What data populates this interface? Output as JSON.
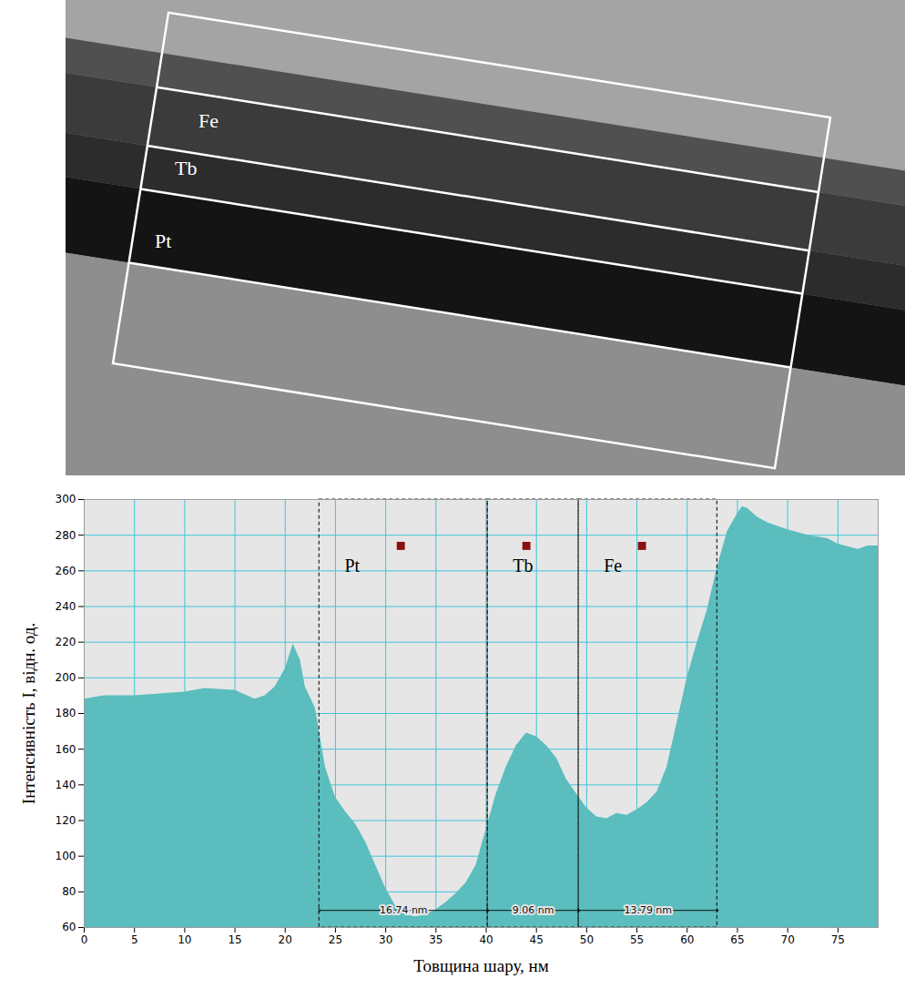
{
  "micrograph": {
    "labels": [
      "Fe",
      "Tb",
      "Pt"
    ]
  },
  "chart_data": {
    "type": "area",
    "x_label": "Товщина шару, нм",
    "y_label": "Інтенсивність I, відн. од.",
    "color": "#5bbdbd",
    "grid": true,
    "xlim": [
      0,
      79
    ],
    "xticks": [
      0,
      5,
      10,
      15,
      20,
      25,
      30,
      35,
      40,
      45,
      50,
      55,
      60,
      65,
      70,
      75
    ],
    "ylim": [
      60,
      300
    ],
    "yticks": [
      60,
      80,
      100,
      120,
      140,
      160,
      180,
      200,
      220,
      240,
      260,
      280,
      300
    ],
    "x": [
      0,
      2,
      5,
      10,
      12,
      15,
      17,
      18,
      19,
      20,
      20.8,
      21.5,
      22,
      23,
      24,
      25,
      26,
      27,
      28,
      29,
      30,
      31,
      32,
      33,
      34,
      35,
      36,
      37,
      38,
      39,
      40,
      41,
      42,
      43,
      44,
      45,
      46,
      47,
      48,
      49,
      50,
      51,
      52,
      53,
      54,
      55,
      56,
      57,
      58,
      59,
      60,
      61,
      62,
      63,
      64,
      65,
      65.5,
      66,
      67,
      68,
      70,
      72,
      74,
      75,
      77,
      78,
      79
    ],
    "values": [
      188,
      190,
      190,
      192,
      194,
      193,
      188,
      190,
      195,
      205,
      219,
      210,
      195,
      183,
      150,
      133,
      125,
      118,
      108,
      95,
      82,
      72,
      67,
      66,
      67,
      70,
      74,
      79,
      85,
      95,
      115,
      135,
      150,
      162,
      169,
      167,
      162,
      155,
      143,
      135,
      127,
      122,
      121,
      124,
      123,
      126,
      130,
      136,
      150,
      175,
      200,
      220,
      238,
      262,
      282,
      292,
      296,
      295,
      290,
      287,
      283,
      280,
      278,
      275,
      272,
      274,
      274
    ],
    "regions": [
      {
        "name": "Pt",
        "x0": 23.4,
        "x1": 40.15,
        "width_label": "16.74 nm",
        "marker_x": 31.5,
        "marker_y": 274
      },
      {
        "name": "Tb",
        "x0": 40.15,
        "x1": 49.2,
        "width_label": "9.06 nm",
        "marker_x": 44,
        "marker_y": 274
      },
      {
        "name": "Fe",
        "x0": 49.2,
        "x1": 63.0,
        "width_label": "13.79 nm",
        "marker_x": 55.5,
        "marker_y": 274
      }
    ],
    "marker_color": "#8b1010"
  }
}
